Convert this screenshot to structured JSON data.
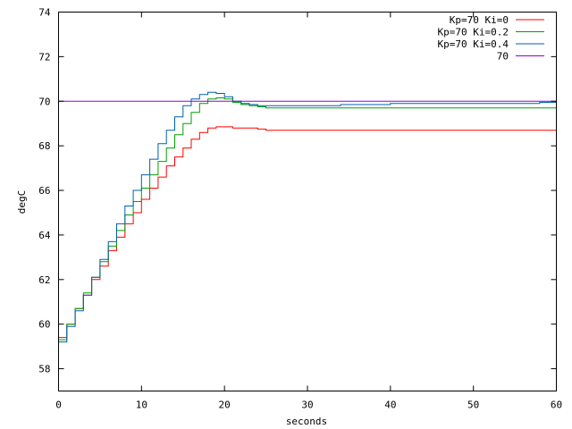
{
  "chart_data": {
    "type": "line",
    "title": "",
    "xlabel": "seconds",
    "ylabel": "degC",
    "xlim": [
      0,
      60
    ],
    "ylim": [
      57,
      74
    ],
    "x_ticks": [
      0,
      10,
      20,
      30,
      40,
      50,
      60
    ],
    "x_tick_labels": [
      "0",
      "10",
      "20",
      "30",
      "40",
      "50",
      "60"
    ],
    "y_ticks": [
      58,
      60,
      62,
      64,
      66,
      68,
      70,
      72,
      74
    ],
    "y_tick_labels": [
      "58",
      "60",
      "62",
      "64",
      "66",
      "68",
      "70",
      "72",
      "74"
    ],
    "grid": false,
    "legend_position": "top-right",
    "series": [
      {
        "name": "Kp=70 Ki=0",
        "color": "#ff0000",
        "x": [
          0,
          1,
          2,
          3,
          4,
          5,
          6,
          7,
          8,
          9,
          10,
          11,
          12,
          13,
          14,
          15,
          16,
          17,
          18,
          19,
          20,
          21,
          22,
          23,
          24,
          25,
          26,
          27,
          28,
          29,
          30,
          32,
          34,
          36,
          38,
          40,
          42,
          44,
          46,
          48,
          50,
          52,
          54,
          56,
          58,
          60
        ],
        "y": [
          59.4,
          60.0,
          60.7,
          61.3,
          62.0,
          62.6,
          63.3,
          63.9,
          64.5,
          65.0,
          65.6,
          66.1,
          66.6,
          67.1,
          67.5,
          67.9,
          68.3,
          68.6,
          68.8,
          68.85,
          68.85,
          68.8,
          68.8,
          68.8,
          68.75,
          68.7,
          68.7,
          68.7,
          68.7,
          68.7,
          68.7,
          68.7,
          68.7,
          68.7,
          68.7,
          68.7,
          68.7,
          68.7,
          68.7,
          68.7,
          68.7,
          68.7,
          68.7,
          68.7,
          68.7,
          68.7
        ]
      },
      {
        "name": "Kp=70 Ki=0.2",
        "color": "#00a000",
        "x": [
          0,
          1,
          2,
          3,
          4,
          5,
          6,
          7,
          8,
          9,
          10,
          11,
          12,
          13,
          14,
          15,
          16,
          17,
          18,
          19,
          20,
          21,
          22,
          23,
          24,
          25,
          26,
          28,
          30,
          32,
          34,
          36,
          38,
          40,
          42,
          44,
          46,
          48,
          50,
          52,
          54,
          56,
          58,
          60
        ],
        "y": [
          59.3,
          60.0,
          60.7,
          61.4,
          62.1,
          62.8,
          63.5,
          64.2,
          64.9,
          65.5,
          66.1,
          66.7,
          67.3,
          67.9,
          68.5,
          69.0,
          69.5,
          69.9,
          70.1,
          70.15,
          70.1,
          69.95,
          69.85,
          69.8,
          69.75,
          69.7,
          69.7,
          69.7,
          69.7,
          69.7,
          69.7,
          69.7,
          69.7,
          69.7,
          69.7,
          69.7,
          69.7,
          69.7,
          69.7,
          69.7,
          69.7,
          69.7,
          69.7,
          69.7
        ]
      },
      {
        "name": "Kp=70 Ki=0.4",
        "color": "#0060ad",
        "x": [
          0,
          1,
          2,
          3,
          4,
          5,
          6,
          7,
          8,
          9,
          10,
          11,
          12,
          13,
          14,
          15,
          16,
          17,
          18,
          19,
          20,
          21,
          22,
          23,
          24,
          25,
          26,
          28,
          30,
          32,
          34,
          36,
          38,
          40,
          42,
          44,
          46,
          48,
          50,
          52,
          54,
          56,
          58,
          60
        ],
        "y": [
          59.2,
          59.9,
          60.6,
          61.3,
          62.1,
          62.9,
          63.7,
          64.5,
          65.3,
          66.0,
          66.7,
          67.4,
          68.1,
          68.7,
          69.3,
          69.8,
          70.1,
          70.3,
          70.4,
          70.35,
          70.2,
          70.0,
          69.9,
          69.85,
          69.8,
          69.8,
          69.8,
          69.8,
          69.8,
          69.8,
          69.85,
          69.85,
          69.85,
          69.9,
          69.9,
          69.9,
          69.9,
          69.9,
          69.9,
          69.9,
          69.9,
          69.9,
          69.95,
          69.9
        ]
      },
      {
        "name": "70",
        "color": "#9400d3",
        "x": [
          0,
          60
        ],
        "y": [
          70,
          70
        ]
      }
    ]
  }
}
